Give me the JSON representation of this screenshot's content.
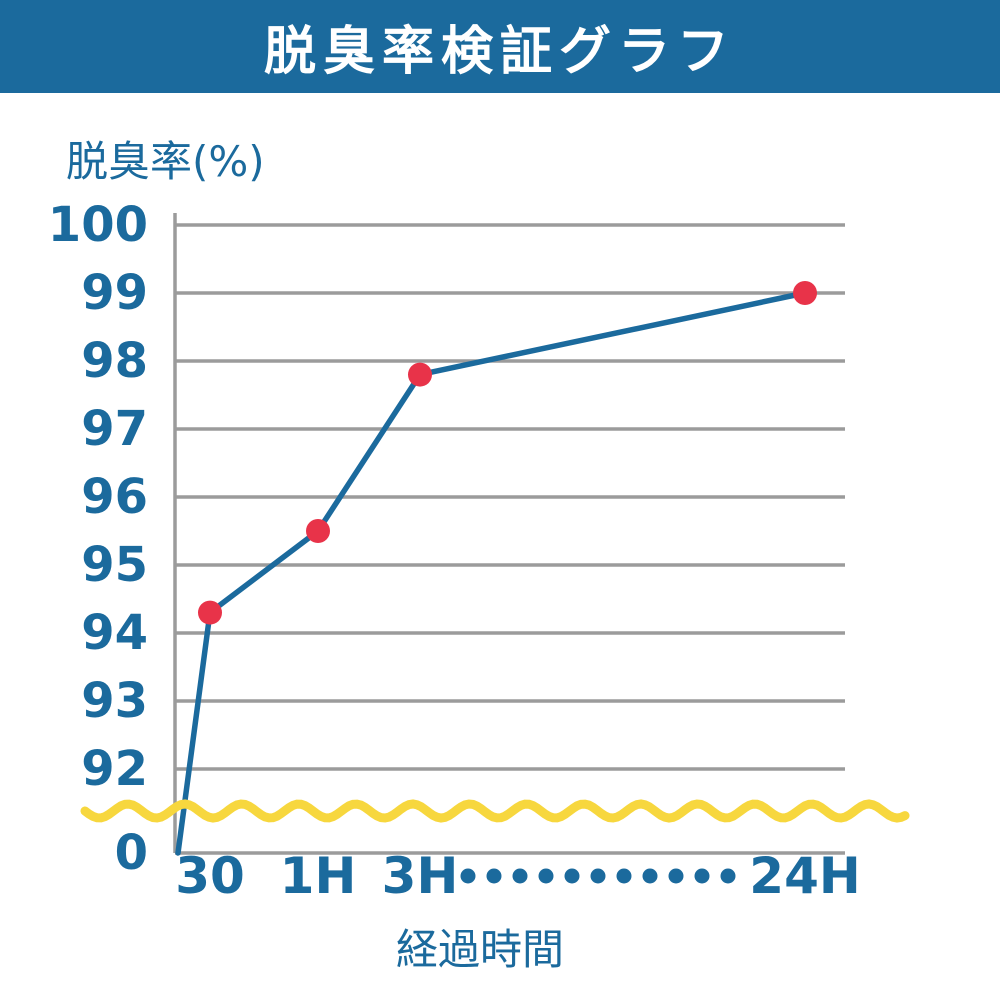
{
  "header": {
    "title": "脱臭率検証グラフ"
  },
  "chart_data": {
    "type": "line",
    "title": "脱臭率検証グラフ",
    "ylabel": "脱臭率(%)",
    "xlabel": "経過時間",
    "categories": [
      "30",
      "1H",
      "3H",
      "24H"
    ],
    "series": [
      {
        "name": "脱臭率",
        "values": [
          94.3,
          95.5,
          97.8,
          99
        ]
      }
    ],
    "values": [
      94.3,
      95.5,
      97.8,
      99
    ],
    "y_ticks": [
      100,
      99,
      98,
      97,
      96,
      95,
      94,
      93,
      92,
      0
    ],
    "ylim": [
      0,
      100
    ],
    "axis_break_between": [
      92,
      0
    ],
    "line_starts_at_zero": true,
    "x_axis_dotted_gap_between": [
      "3H",
      "24H"
    ],
    "grid": true,
    "legend": "none",
    "colors": {
      "header_bg": "#1b6a9d",
      "header_text": "#ffffff",
      "axis_text": "#1b6a9d",
      "line": "#1b6a9d",
      "point": "#e83349",
      "grid": "#9b9b9b",
      "axis_break_wave": "#f7d73e"
    }
  }
}
